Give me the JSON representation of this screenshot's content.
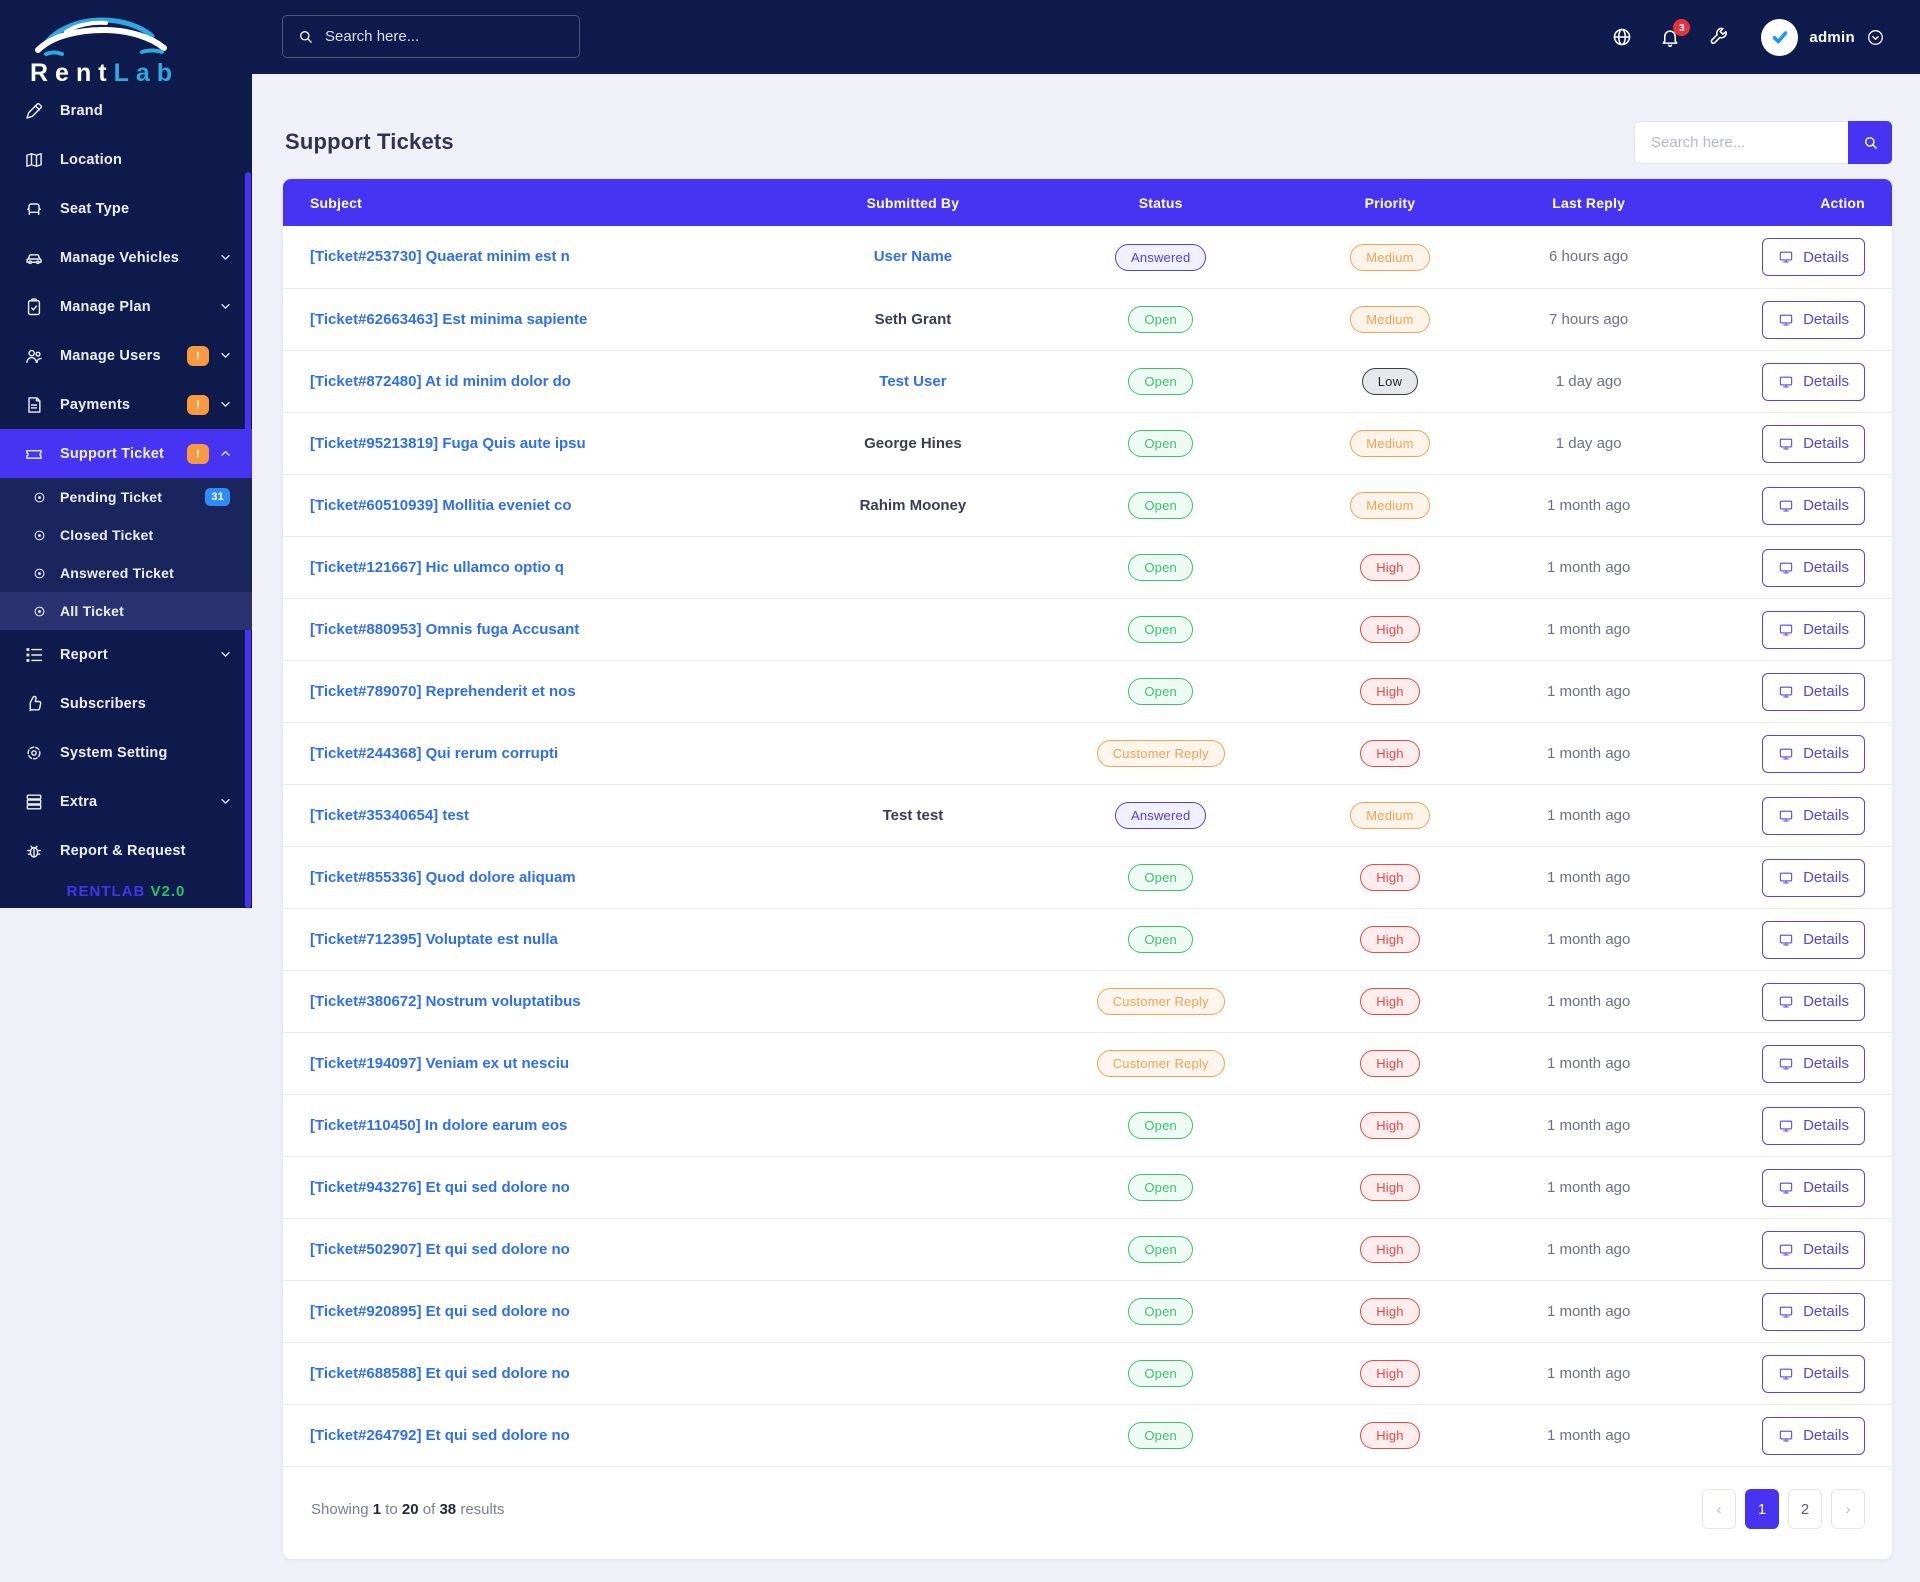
{
  "app": {
    "brand_first": "Rent",
    "brand_second": "Lab"
  },
  "topbar": {
    "search_placeholder": "Search here...",
    "notification_count": "3",
    "user_name": "admin",
    "icons": [
      "globe-icon",
      "bell-icon",
      "wrench-icon",
      "avatar",
      "chevron-down-circle-icon"
    ]
  },
  "sidebar": {
    "items": [
      {
        "label": "Brand",
        "icon": "pen"
      },
      {
        "label": "Location",
        "icon": "map"
      },
      {
        "label": "Seat Type",
        "icon": "seat"
      },
      {
        "label": "Manage Vehicles",
        "icon": "car",
        "chevron": "down"
      },
      {
        "label": "Manage Plan",
        "icon": "clipboard",
        "chevron": "down"
      },
      {
        "label": "Manage Users",
        "icon": "users",
        "chevron": "down",
        "badge": "!"
      },
      {
        "label": "Payments",
        "icon": "invoice",
        "chevron": "down",
        "badge": "!"
      },
      {
        "label": "Support Ticket",
        "icon": "ticket",
        "chevron": "up",
        "badge": "!",
        "active": true
      },
      {
        "label": "Pending Ticket",
        "icon": "dot",
        "sub": true,
        "count_badge": "31"
      },
      {
        "label": "Closed Ticket",
        "icon": "dot",
        "sub": true
      },
      {
        "label": "Answered Ticket",
        "icon": "dot",
        "sub": true
      },
      {
        "label": "All Ticket",
        "icon": "dot",
        "sub": true,
        "subactive": true
      },
      {
        "label": "Report",
        "icon": "report",
        "chevron": "down"
      },
      {
        "label": "Subscribers",
        "icon": "thumb"
      },
      {
        "label": "System Setting",
        "icon": "cog"
      },
      {
        "label": "Extra",
        "icon": "server",
        "chevron": "down"
      },
      {
        "label": "Report & Request",
        "icon": "bug"
      }
    ],
    "footer_brand": "RENTLAB",
    "footer_version": "V2.0"
  },
  "page": {
    "title": "Support Tickets",
    "search_placeholder": "Search here..."
  },
  "table": {
    "columns": [
      "Subject",
      "Submitted By",
      "Status",
      "Priority",
      "Last Reply",
      "Action"
    ],
    "action_label": "Details",
    "rows": [
      {
        "subject": "[Ticket#253730] Quaerat minim est n",
        "submitted_by": "User Name",
        "submitted_link": true,
        "status": "Answered",
        "priority": "Medium",
        "last_reply": "6 hours ago"
      },
      {
        "subject": "[Ticket#62663463] Est minima sapiente",
        "submitted_by": "Seth Grant",
        "submitted_link": false,
        "status": "Open",
        "priority": "Medium",
        "last_reply": "7 hours ago"
      },
      {
        "subject": "[Ticket#872480] At id minim dolor do",
        "submitted_by": "Test User",
        "submitted_link": true,
        "status": "Open",
        "priority": "Low",
        "last_reply": "1 day ago"
      },
      {
        "subject": "[Ticket#95213819] Fuga Quis aute ipsu",
        "submitted_by": "George Hines",
        "submitted_link": false,
        "status": "Open",
        "priority": "Medium",
        "last_reply": "1 day ago"
      },
      {
        "subject": "[Ticket#60510939] Mollitia eveniet co",
        "submitted_by": "Rahim Mooney",
        "submitted_link": false,
        "status": "Open",
        "priority": "Medium",
        "last_reply": "1 month ago"
      },
      {
        "subject": "[Ticket#121667] Hic ullamco optio q",
        "submitted_by": "",
        "submitted_link": false,
        "status": "Open",
        "priority": "High",
        "last_reply": "1 month ago"
      },
      {
        "subject": "[Ticket#880953] Omnis fuga Accusant",
        "submitted_by": "",
        "submitted_link": false,
        "status": "Open",
        "priority": "High",
        "last_reply": "1 month ago"
      },
      {
        "subject": "[Ticket#789070] Reprehenderit et nos",
        "submitted_by": "",
        "submitted_link": false,
        "status": "Open",
        "priority": "High",
        "last_reply": "1 month ago"
      },
      {
        "subject": "[Ticket#244368] Qui rerum corrupti",
        "submitted_by": "",
        "submitted_link": false,
        "status": "Customer Reply",
        "priority": "High",
        "last_reply": "1 month ago"
      },
      {
        "subject": "[Ticket#35340654] test",
        "submitted_by": "Test test",
        "submitted_link": false,
        "status": "Answered",
        "priority": "Medium",
        "last_reply": "1 month ago"
      },
      {
        "subject": "[Ticket#855336] Quod dolore aliquam",
        "submitted_by": "",
        "submitted_link": false,
        "status": "Open",
        "priority": "High",
        "last_reply": "1 month ago"
      },
      {
        "subject": "[Ticket#712395] Voluptate est nulla",
        "submitted_by": "",
        "submitted_link": false,
        "status": "Open",
        "priority": "High",
        "last_reply": "1 month ago"
      },
      {
        "subject": "[Ticket#380672] Nostrum voluptatibus",
        "submitted_by": "",
        "submitted_link": false,
        "status": "Customer Reply",
        "priority": "High",
        "last_reply": "1 month ago"
      },
      {
        "subject": "[Ticket#194097] Veniam ex ut nesciu",
        "submitted_by": "",
        "submitted_link": false,
        "status": "Customer Reply",
        "priority": "High",
        "last_reply": "1 month ago"
      },
      {
        "subject": "[Ticket#110450] In dolore earum eos",
        "submitted_by": "",
        "submitted_link": false,
        "status": "Open",
        "priority": "High",
        "last_reply": "1 month ago"
      },
      {
        "subject": "[Ticket#943276] Et qui sed dolore no",
        "submitted_by": "",
        "submitted_link": false,
        "status": "Open",
        "priority": "High",
        "last_reply": "1 month ago"
      },
      {
        "subject": "[Ticket#502907] Et qui sed dolore no",
        "submitted_by": "",
        "submitted_link": false,
        "status": "Open",
        "priority": "High",
        "last_reply": "1 month ago"
      },
      {
        "subject": "[Ticket#920895] Et qui sed dolore no",
        "submitted_by": "",
        "submitted_link": false,
        "status": "Open",
        "priority": "High",
        "last_reply": "1 month ago"
      },
      {
        "subject": "[Ticket#688588] Et qui sed dolore no",
        "submitted_by": "",
        "submitted_link": false,
        "status": "Open",
        "priority": "High",
        "last_reply": "1 month ago"
      },
      {
        "subject": "[Ticket#264792] Et qui sed dolore no",
        "submitted_by": "",
        "submitted_link": false,
        "status": "Open",
        "priority": "High",
        "last_reply": "1 month ago"
      }
    ]
  },
  "pagination": {
    "summary": {
      "word1": "Showing",
      "from": "1",
      "word2": "to",
      "to": "20",
      "word3": "of",
      "total": "38",
      "word4": "results"
    },
    "pages": [
      {
        "label": "‹",
        "type": "prev"
      },
      {
        "label": "1",
        "active": true
      },
      {
        "label": "2"
      },
      {
        "label": "›",
        "type": "next"
      }
    ]
  },
  "colors": {
    "navy": "#0F1B4C",
    "accent": "#4734F2",
    "logo_blue": "#2DA8E0",
    "status_open": "#3FBF72",
    "status_answered": "#4F41E8",
    "status_customer_reply": "#F2A254",
    "priority_medium": "#F2A254",
    "priority_high": "#E14B4B",
    "priority_low": "#26282E",
    "alert_badge": "#F89940",
    "count_badge": "#2F8BF5",
    "notification_badge": "#E8333F",
    "version_green": "#27C465",
    "link_blue": "#2E6EF0"
  }
}
